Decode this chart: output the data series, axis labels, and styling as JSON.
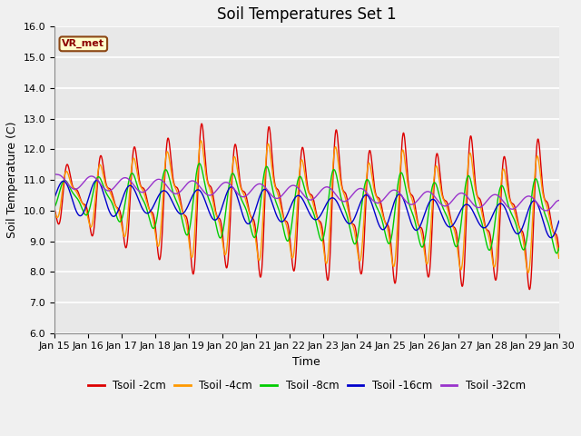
{
  "title": "Soil Temperatures Set 1",
  "xlabel": "Time",
  "ylabel": "Soil Temperature (C)",
  "ylim": [
    6.0,
    16.0
  ],
  "yticks": [
    6.0,
    7.0,
    8.0,
    9.0,
    10.0,
    11.0,
    12.0,
    13.0,
    14.0,
    15.0,
    16.0
  ],
  "xtick_labels": [
    "Jan 15",
    "Jan 16",
    "Jan 17",
    "Jan 18",
    "Jan 19",
    "Jan 20",
    "Jan 21",
    "Jan 22",
    "Jan 23",
    "Jan 24",
    "Jan 25",
    "Jan 26",
    "Jan 27",
    "Jan 28",
    "Jan 29",
    "Jan 30"
  ],
  "series": [
    {
      "label": "Tsoil -2cm",
      "color": "#dd0000"
    },
    {
      "label": "Tsoil -4cm",
      "color": "#ff9900"
    },
    {
      "label": "Tsoil -8cm",
      "color": "#00cc00"
    },
    {
      "label": "Tsoil -16cm",
      "color": "#0000cc"
    },
    {
      "label": "Tsoil -32cm",
      "color": "#9933cc"
    }
  ],
  "legend_label": "VR_met",
  "bg_color": "#e8e8e8",
  "grid_color": "#ffffff",
  "fig_bg_color": "#f0f0f0",
  "title_fontsize": 12,
  "axis_fontsize": 9,
  "tick_fontsize": 8
}
